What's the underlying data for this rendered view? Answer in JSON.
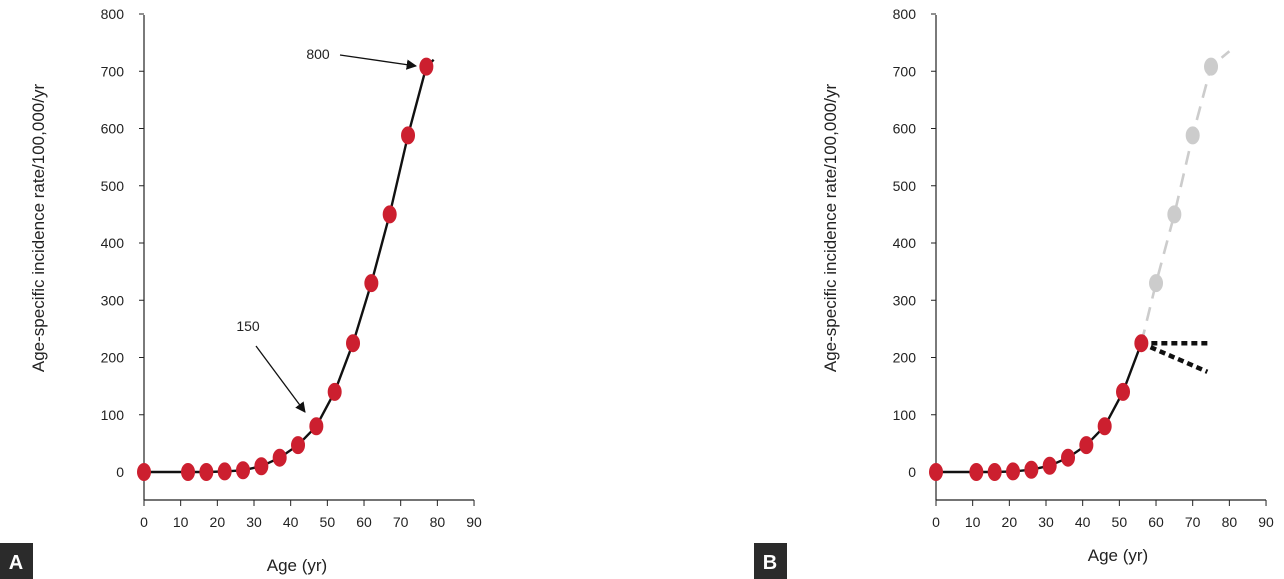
{
  "chart_data": [
    {
      "panel": "A",
      "type": "line",
      "xlabel": "Age (yr)",
      "ylabel": "Age-specific incidence rate/100,000/yr",
      "xlim": [
        0,
        90
      ],
      "ylim": [
        0,
        800
      ],
      "x_ticks": [
        "0",
        "10",
        "20",
        "30",
        "40",
        "50",
        "60",
        "70",
        "80",
        "90"
      ],
      "y_ticks": [
        "0",
        "100",
        "200",
        "300",
        "400",
        "500",
        "600",
        "700",
        "800"
      ],
      "series": [
        {
          "points": [
            [
              0,
              0
            ],
            [
              12,
              0
            ],
            [
              17,
              0
            ],
            [
              22,
              1
            ],
            [
              27,
              3
            ],
            [
              32,
              10
            ],
            [
              37,
              25
            ],
            [
              42,
              47
            ],
            [
              47,
              80
            ],
            [
              52,
              140
            ],
            [
              57,
              225
            ],
            [
              62,
              330
            ],
            [
              67,
              450
            ],
            [
              72,
              588
            ],
            [
              77,
              708
            ]
          ],
          "line_end": [
            79,
            720
          ],
          "color": "#cc1f2f"
        }
      ],
      "annotations": [
        {
          "text": "800",
          "target": [
            77,
            708
          ]
        },
        {
          "text": "150",
          "target": [
            45,
            105
          ]
        }
      ],
      "grid": false
    },
    {
      "panel": "B",
      "type": "line",
      "xlabel": "Age (yr)",
      "ylabel": "Age-specific incidence rate/100,000/yr",
      "xlim": [
        0,
        90
      ],
      "ylim": [
        0,
        800
      ],
      "x_ticks": [
        "0",
        "10",
        "20",
        "30",
        "40",
        "50",
        "60",
        "70",
        "80",
        "90"
      ],
      "y_ticks": [
        "0",
        "100",
        "200",
        "300",
        "400",
        "500",
        "600",
        "700",
        "800"
      ],
      "series": [
        {
          "style": "solid",
          "color": "#cc1f2f",
          "points": [
            [
              0,
              0
            ],
            [
              11,
              0
            ],
            [
              16,
              0
            ],
            [
              21,
              1
            ],
            [
              26,
              4
            ],
            [
              31,
              11
            ],
            [
              36,
              25
            ],
            [
              41,
              47
            ],
            [
              46,
              80
            ],
            [
              51,
              140
            ],
            [
              56,
              225
            ]
          ]
        },
        {
          "style": "dashed-projection",
          "color": "#cccccc",
          "points": [
            [
              60,
              330
            ],
            [
              65,
              450
            ],
            [
              70,
              588
            ],
            [
              75,
              708
            ]
          ],
          "line_end": [
            80,
            735
          ]
        },
        {
          "style": "dotted-plateau",
          "color": "#222222",
          "points": [
            [
              56,
              225
            ],
            [
              74,
              225
            ]
          ]
        },
        {
          "style": "dotted-decline",
          "color": "#222222",
          "points": [
            [
              56,
              225
            ],
            [
              74,
              175
            ]
          ]
        }
      ],
      "grid": false
    }
  ],
  "panel_labels": [
    "A",
    "B"
  ]
}
